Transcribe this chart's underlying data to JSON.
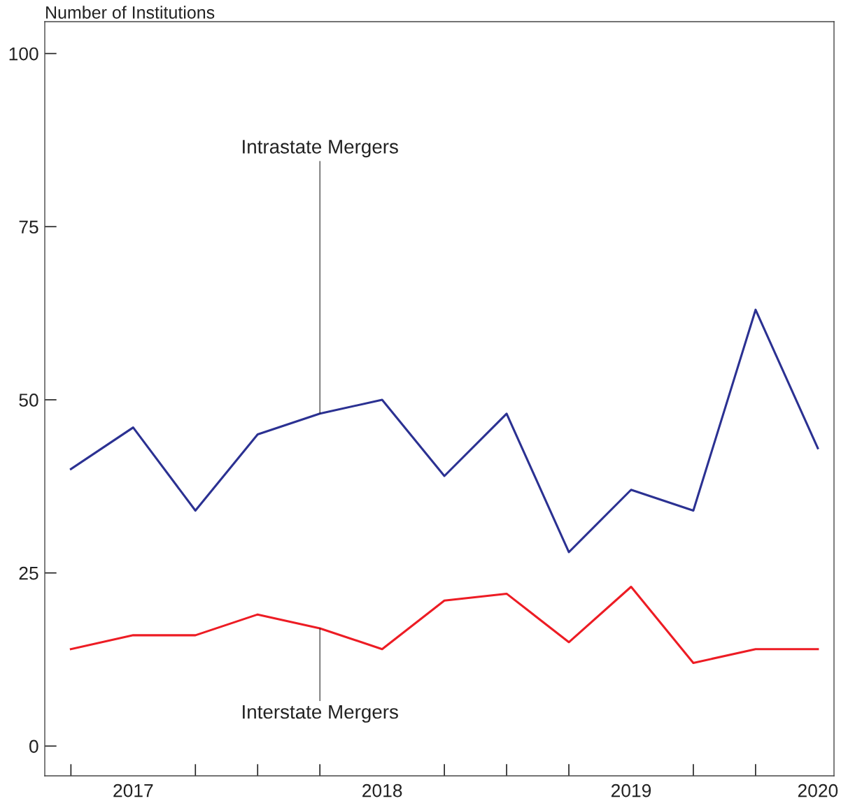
{
  "chart_data": {
    "type": "line",
    "ylabel": "Number of Institutions",
    "categories": [
      null,
      "2017",
      null,
      null,
      null,
      "2018",
      null,
      null,
      null,
      "2019",
      null,
      null,
      "2020"
    ],
    "ylim": [
      -4.3,
      104.6
    ],
    "yticks": [
      0,
      25,
      50,
      75,
      100
    ],
    "series": [
      {
        "color": "#2b3192",
        "values": [
          40,
          46,
          34,
          45,
          48,
          50,
          39,
          48,
          28,
          37,
          34,
          63,
          43
        ]
      },
      {
        "color": "#ed1c24",
        "values": [
          14,
          16,
          16,
          19,
          17,
          14,
          21,
          22,
          15,
          23,
          12,
          14,
          14
        ]
      }
    ],
    "annotations": [
      {
        "text": "Intrastate Mergers",
        "y": 48
      },
      {
        "text": "Interstate Mergers",
        "y": 17
      }
    ],
    "grid": false,
    "legend": false,
    "line_style": "solid",
    "marker": "none"
  }
}
